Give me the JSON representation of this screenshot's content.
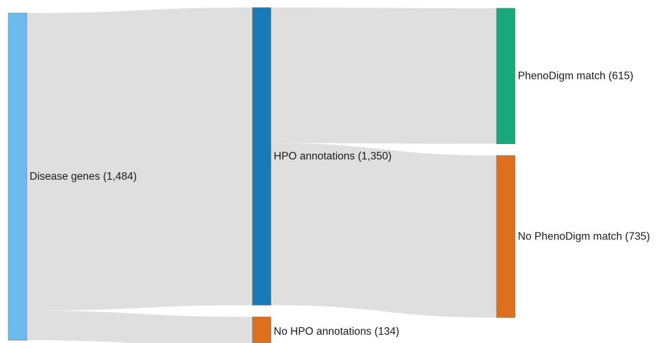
{
  "chart_data": {
    "type": "sankey",
    "nodes": [
      {
        "id": "disease_genes",
        "label": "Disease genes (1,484)",
        "value": 1484,
        "color": "#6bbcec"
      },
      {
        "id": "hpo_annotations",
        "label": "HPO annotations (1,350)",
        "value": 1350,
        "color": "#1a7ab8"
      },
      {
        "id": "no_hpo_annotations",
        "label": "No HPO annotations (134)",
        "value": 134,
        "color": "#de6f1c"
      },
      {
        "id": "phenodigm_match",
        "label": "PhenoDigm match (615)",
        "value": 615,
        "color": "#1aa77b"
      },
      {
        "id": "no_phenodigm_match",
        "label": "No PhenoDigm match (735)",
        "value": 735,
        "color": "#de6f1c"
      }
    ],
    "links": [
      {
        "source": "disease_genes",
        "target": "hpo_annotations",
        "value": 1350
      },
      {
        "source": "disease_genes",
        "target": "no_hpo_annotations",
        "value": 134
      },
      {
        "source": "hpo_annotations",
        "target": "phenodigm_match",
        "value": 615
      },
      {
        "source": "hpo_annotations",
        "target": "no_phenodigm_match",
        "value": 735
      }
    ],
    "link_color": "#dcdcdc"
  }
}
